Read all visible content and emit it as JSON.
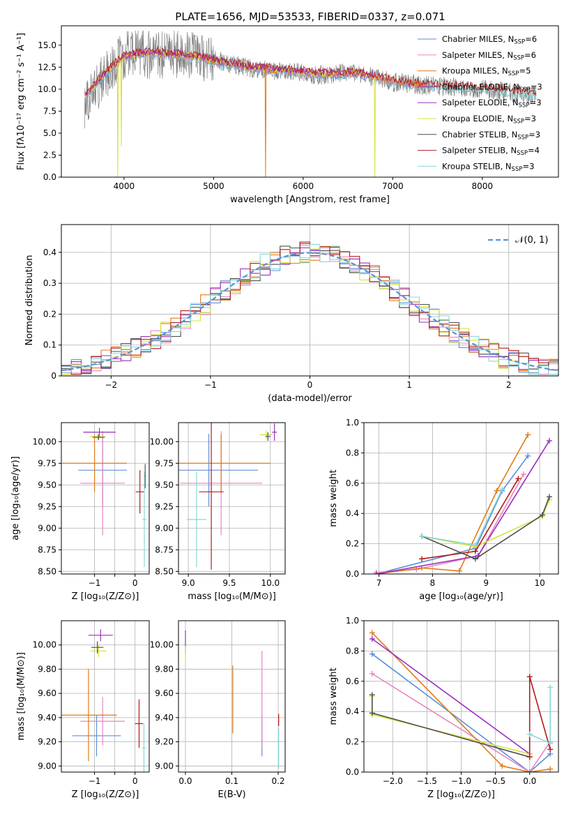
{
  "figure_title": "PLATE=1656, MJD=53533, FIBERID=0337, z=0.071",
  "colors": {
    "Chabrier MILES": "#5b8fd9",
    "Salpeter MILES": "#e885c1",
    "Kroupa MILES": "#e07b1a",
    "Chabrier ELODIE": "#9b2fbd",
    "Salpeter ELODIE": "#9b2fbd",
    "Kroupa ELODIE": "#d4e23a",
    "Chabrier STELIB": "#4f4f4f",
    "Salpeter STELIB": "#b31b1b",
    "Kroupa STELIB": "#86d8d8",
    "normal": "#5b8fd9",
    "spectrum_data": "#808080"
  },
  "chart_data": [
    {
      "id": "spectrum",
      "type": "line",
      "title": "PLATE=1656, MJD=53533, FIBERID=0337, z=0.071",
      "xlabel": "wavelength [Angstrom, rest frame]",
      "ylabel": "Flux [fλ10⁻¹⁷ erg cm⁻² s⁻¹ A⁻¹]",
      "xlim": [
        3300,
        8850
      ],
      "ylim": [
        0,
        17.2
      ],
      "xticks": [
        4000,
        5000,
        6000,
        7000,
        8000
      ],
      "yticks": [
        0.0,
        2.5,
        5.0,
        7.5,
        10.0,
        12.5,
        15.0
      ],
      "legend_position": "top-right",
      "legend": [
        {
          "label": "Chabrier MILES, N",
          "sub": "SSP",
          "suffix": "=6",
          "key": "Chabrier MILES"
        },
        {
          "label": "Salpeter MILES, N",
          "sub": "SSP",
          "suffix": "=6",
          "key": "Salpeter MILES"
        },
        {
          "label": "Kroupa MILES, N",
          "sub": "SSP",
          "suffix": "=5",
          "key": "Kroupa MILES"
        },
        {
          "label": "Chabrier ELODIE, N",
          "sub": "SSP",
          "suffix": "=3",
          "key": "Chabrier ELODIE"
        },
        {
          "label": "Salpeter ELODIE, N",
          "sub": "SSP",
          "suffix": "=3",
          "key": "Salpeter ELODIE"
        },
        {
          "label": "Kroupa ELODIE, N",
          "sub": "SSP",
          "suffix": "=3",
          "key": "Kroupa ELODIE"
        },
        {
          "label": "Chabrier STELIB, N",
          "sub": "SSP",
          "suffix": "=3",
          "key": "Chabrier STELIB"
        },
        {
          "label": "Salpeter STELIB, N",
          "sub": "SSP",
          "suffix": "=4",
          "key": "Salpeter STELIB"
        },
        {
          "label": "Kroupa STELIB, N",
          "sub": "SSP",
          "suffix": "=3",
          "key": "Kroupa STELIB"
        }
      ],
      "observed_continuum": [
        [
          3560,
          8.2
        ],
        [
          3650,
          9.6
        ],
        [
          3750,
          11.0
        ],
        [
          3850,
          12.2
        ],
        [
          3950,
          13.3
        ],
        [
          4050,
          14.0
        ],
        [
          4200,
          14.0
        ],
        [
          4400,
          13.8
        ],
        [
          4600,
          14.0
        ],
        [
          4800,
          13.8
        ],
        [
          5000,
          13.4
        ],
        [
          5200,
          12.8
        ],
        [
          5400,
          12.4
        ],
        [
          5600,
          12.1
        ],
        [
          5800,
          12.0
        ],
        [
          6000,
          11.8
        ],
        [
          6200,
          11.6
        ],
        [
          6400,
          11.8
        ],
        [
          6600,
          11.7
        ],
        [
          6800,
          11.4
        ],
        [
          7000,
          10.8
        ],
        [
          7200,
          10.6
        ],
        [
          7400,
          10.4
        ],
        [
          7600,
          10.3
        ],
        [
          7800,
          10.2
        ],
        [
          8000,
          10.0
        ],
        [
          8200,
          9.8
        ],
        [
          8400,
          9.5
        ],
        [
          8600,
          9.3
        ]
      ],
      "model_continuum": [
        [
          3560,
          9.0
        ],
        [
          3700,
          10.8
        ],
        [
          3850,
          12.4
        ],
        [
          4000,
          13.6
        ],
        [
          4200,
          14.1
        ],
        [
          4500,
          14.0
        ],
        [
          4800,
          13.7
        ],
        [
          5100,
          13.0
        ],
        [
          5400,
          12.5
        ],
        [
          5700,
          12.2
        ],
        [
          6000,
          11.9
        ],
        [
          6300,
          11.7
        ],
        [
          6600,
          11.8
        ],
        [
          6900,
          11.1
        ],
        [
          7200,
          10.6
        ],
        [
          7500,
          10.4
        ],
        [
          7800,
          10.2
        ],
        [
          8100,
          10.0
        ],
        [
          8400,
          9.6
        ],
        [
          8600,
          9.4
        ]
      ],
      "model_end_wavelengths": {
        "MILES": 7400,
        "ELODIE": 6800,
        "STELIB": 8600
      },
      "dips": [
        {
          "series": "Kroupa ELODIE",
          "x": 3930,
          "y": 0.0
        },
        {
          "series": "Kroupa ELODIE",
          "x": 3970,
          "y": 3.5
        },
        {
          "series": "Kroupa MILES",
          "x": 5580,
          "y": 0.0
        },
        {
          "series": "Kroupa ELODIE",
          "x": 6800,
          "y": 0.0
        }
      ]
    },
    {
      "id": "residuals",
      "type": "line",
      "xlabel": "(data-model)/error",
      "ylabel": "Normed distribution",
      "xlim": [
        -2.5,
        2.5
      ],
      "ylim": [
        0,
        0.49
      ],
      "xticks": [
        -2,
        -1,
        0,
        1,
        2
      ],
      "yticks": [
        0.0,
        0.1,
        0.2,
        0.3,
        0.4
      ],
      "grid": true,
      "legend_position": "top-right",
      "normal_label": "𝒩(0, 1)",
      "bin_width": 0.1
    },
    {
      "id": "age-vs-Z",
      "type": "scatter",
      "xlabel": "Z [log₁₀(Z/Z⊙)]",
      "ylabel": "age  [log₁₀(age/yr)]",
      "xlim": [
        -1.82,
        0.35
      ],
      "ylim": [
        8.47,
        10.22
      ],
      "xticks": [
        -1,
        -0.5,
        0
      ],
      "xticklabels": [
        "−1",
        "",
        "0"
      ],
      "yticks": [
        8.5,
        8.75,
        9.0,
        9.25,
        9.5,
        9.75,
        10.0
      ],
      "grid": true,
      "points": [
        {
          "series": "Chabrier MILES",
          "x": -0.8,
          "xerr": 0.6,
          "y": 9.67,
          "yerr": 0.42
        },
        {
          "series": "Salpeter MILES",
          "x": -0.8,
          "xerr": 0.55,
          "y": 9.52,
          "yerr": 0.6
        },
        {
          "series": "Kroupa MILES",
          "x": -1.0,
          "xerr": 0.8,
          "y": 9.75,
          "yerr": 0.33
        },
        {
          "series": "Chabrier ELODIE",
          "x": -0.88,
          "xerr": 0.4,
          "y": 10.11,
          "yerr": 0.05
        },
        {
          "series": "Kroupa ELODIE",
          "x": -0.92,
          "xerr": 0.2,
          "y": 10.06,
          "yerr": 0.05
        },
        {
          "series": "Chabrier STELIB",
          "x": -0.9,
          "xerr": 0.15,
          "y": 10.05,
          "yerr": 0.03
        },
        {
          "series": "Salpeter STELIB",
          "x": 0.12,
          "xerr": 0.1,
          "y": 9.42,
          "yerr": 0.25
        },
        {
          "series": "Chabrier STELIB",
          "x": 0.25,
          "xerr": 0.02,
          "y": 9.6,
          "yerr": 0.14
        },
        {
          "series": "Kroupa STELIB",
          "x": 0.23,
          "xerr": 0.05,
          "y": 9.1,
          "yerr": 0.55
        }
      ]
    },
    {
      "id": "age-vs-mass",
      "type": "scatter",
      "xlabel": "mass [log₁₀(M/M⊙)]",
      "xlim": [
        8.88,
        10.18
      ],
      "ylim": [
        8.47,
        10.22
      ],
      "xticks": [
        9.0,
        9.5,
        10.0
      ],
      "yticks": [
        8.5,
        8.75,
        9.0,
        9.25,
        9.5,
        9.75,
        10.0
      ],
      "grid": true,
      "points": [
        {
          "series": "Chabrier MILES",
          "x": 9.25,
          "xerr": 0.6,
          "y": 9.67,
          "yerr": 0.42
        },
        {
          "series": "Salpeter MILES",
          "x": 9.4,
          "xerr": 0.5,
          "y": 9.52,
          "yerr": 0.6
        },
        {
          "series": "Kroupa MILES",
          "x": 9.4,
          "xerr": 0.6,
          "y": 9.75,
          "yerr": 0.33
        },
        {
          "series": "Salpeter ELODIE",
          "x": 10.05,
          "xerr": 0.03,
          "y": 10.11,
          "yerr": 0.1
        },
        {
          "series": "Kroupa ELODIE",
          "x": 9.95,
          "xerr": 0.08,
          "y": 10.08,
          "yerr": 0.05
        },
        {
          "series": "Chabrier STELIB",
          "x": 9.97,
          "xerr": 0.03,
          "y": 10.06,
          "yerr": 0.05
        },
        {
          "series": "Salpeter STELIB",
          "x": 9.28,
          "xerr": 0.15,
          "y": 9.42,
          "yerr": 0.9
        },
        {
          "series": "Kroupa STELIB",
          "x": 9.1,
          "xerr": 0.12,
          "y": 9.1,
          "yerr": 0.55
        }
      ]
    },
    {
      "id": "massweight-vs-age",
      "type": "line",
      "xlabel": "age  [log₁₀(age/yr)]",
      "ylabel": "mass weight",
      "xlim": [
        6.72,
        10.35
      ],
      "ylim": [
        0,
        1.0
      ],
      "xticks": [
        7,
        8,
        9,
        10
      ],
      "yticks": [
        0.0,
        0.2,
        0.4,
        0.6,
        0.8,
        1.0
      ],
      "grid": true,
      "series": [
        {
          "name": "Chabrier MILES",
          "points": [
            [
              6.95,
              0.0
            ],
            [
              8.8,
              0.17
            ],
            [
              9.3,
              0.55
            ],
            [
              9.78,
              0.78
            ]
          ]
        },
        {
          "name": "Salpeter MILES",
          "points": [
            [
              6.95,
              0.01
            ],
            [
              7.7,
              0.03
            ],
            [
              8.85,
              0.12
            ],
            [
              9.7,
              0.66
            ]
          ]
        },
        {
          "name": "Kroupa MILES",
          "points": [
            [
              6.95,
              0.0
            ],
            [
              7.8,
              0.04
            ],
            [
              8.5,
              0.02
            ],
            [
              9.2,
              0.55
            ],
            [
              9.78,
              0.92
            ]
          ]
        },
        {
          "name": "Salpeter ELODIE",
          "points": [
            [
              6.95,
              0.0
            ],
            [
              8.85,
              0.12
            ],
            [
              10.18,
              0.88
            ]
          ]
        },
        {
          "name": "Kroupa ELODIE",
          "points": [
            [
              7.8,
              0.25
            ],
            [
              8.8,
              0.18
            ],
            [
              10.05,
              0.38
            ],
            [
              10.18,
              0.49
            ]
          ]
        },
        {
          "name": "Chabrier STELIB",
          "points": [
            [
              7.8,
              0.25
            ],
            [
              8.8,
              0.1
            ],
            [
              10.05,
              0.39
            ],
            [
              10.18,
              0.51
            ]
          ]
        },
        {
          "name": "Salpeter STELIB",
          "points": [
            [
              7.8,
              0.1
            ],
            [
              8.8,
              0.15
            ],
            [
              9.6,
              0.63
            ]
          ]
        },
        {
          "name": "Kroupa STELIB",
          "points": [
            [
              7.8,
              0.25
            ],
            [
              8.8,
              0.19
            ],
            [
              9.3,
              0.56
            ]
          ]
        }
      ]
    },
    {
      "id": "mass-vs-Z",
      "type": "scatter",
      "xlabel": "Z [log₁₀(Z/Z⊙)]",
      "ylabel": "mass [log₁₀(M/M⊙)]",
      "xlim": [
        -1.82,
        0.35
      ],
      "ylim": [
        8.95,
        10.2
      ],
      "xticks": [
        -1,
        -0.5,
        0
      ],
      "xticklabels": [
        "−1",
        "",
        "0"
      ],
      "yticks": [
        9.0,
        9.2,
        9.4,
        9.6,
        9.8,
        10.0
      ],
      "grid": true,
      "points": [
        {
          "series": "Chabrier MILES",
          "x": -0.95,
          "xerr": 0.6,
          "y": 9.25,
          "yerr": 0.17
        },
        {
          "series": "Salpeter MILES",
          "x": -0.8,
          "xerr": 0.55,
          "y": 9.37,
          "yerr": 0.2
        },
        {
          "series": "Kroupa MILES",
          "x": -1.15,
          "xerr": 0.7,
          "y": 9.42,
          "yerr": 0.38
        },
        {
          "series": "Salpeter ELODIE",
          "x": -0.85,
          "xerr": 0.3,
          "y": 10.08,
          "yerr": 0.05
        },
        {
          "series": "Kroupa ELODIE",
          "x": -0.9,
          "xerr": 0.2,
          "y": 9.95,
          "yerr": 0.05
        },
        {
          "series": "Chabrier STELIB",
          "x": -0.93,
          "xerr": 0.15,
          "y": 9.98,
          "yerr": 0.05
        },
        {
          "series": "Salpeter STELIB",
          "x": 0.1,
          "xerr": 0.1,
          "y": 9.35,
          "yerr": 0.2
        },
        {
          "series": "Kroupa STELIB",
          "x": 0.22,
          "xerr": 0.05,
          "y": 9.15,
          "yerr": 0.2
        }
      ]
    },
    {
      "id": "mass-vs-EBV",
      "type": "scatter",
      "xlabel": "E(B-V)",
      "xlim": [
        -0.015,
        0.215
      ],
      "ylim": [
        8.95,
        10.2
      ],
      "xticks": [
        0.0,
        0.1,
        0.2
      ],
      "yticks": [
        9.0,
        9.2,
        9.4,
        9.6,
        9.8,
        10.0
      ],
      "grid": true,
      "points": [
        {
          "series": "Chabrier MILES",
          "x": 0.165,
          "y": 9.25,
          "yerr": 0.17
        },
        {
          "series": "Salpeter MILES",
          "x": 0.165,
          "y": 9.55,
          "yerr": 0.4
        },
        {
          "series": "Kroupa MILES",
          "x": 0.102,
          "y": 9.55,
          "yerr": 0.28
        },
        {
          "series": "Salpeter ELODIE",
          "x": 0.0,
          "y": 10.02,
          "yerr": 0.1
        },
        {
          "series": "Kroupa ELODIE",
          "x": 0.0,
          "y": 9.92,
          "yerr": 0.07
        },
        {
          "series": "Salpeter STELIB",
          "x": 0.201,
          "y": 9.38,
          "yerr": 0.05
        },
        {
          "series": "Kroupa STELIB",
          "x": 0.201,
          "y": 9.15,
          "yerr": 0.17
        }
      ]
    },
    {
      "id": "massweight-vs-Z",
      "type": "line",
      "xlabel": "Z [log₁₀(Z/Z⊙)]",
      "ylabel": "mass weight",
      "xlim": [
        -2.42,
        0.42
      ],
      "ylim": [
        0,
        1.0
      ],
      "xticks": [
        -2.0,
        -1.5,
        -1.0,
        -0.5,
        0.0
      ],
      "yticks": [
        0.0,
        0.2,
        0.4,
        0.6,
        0.8,
        1.0
      ],
      "grid": true,
      "series": [
        {
          "name": "Chabrier MILES",
          "points": [
            [
              -2.3,
              0.78
            ],
            [
              0.0,
              0.0
            ],
            [
              0.3,
              0.12
            ]
          ]
        },
        {
          "name": "Salpeter MILES",
          "points": [
            [
              -2.3,
              0.65
            ],
            [
              0.0,
              0.0
            ],
            [
              0.3,
              0.2
            ]
          ]
        },
        {
          "name": "Kroupa MILES",
          "points": [
            [
              -2.3,
              0.92
            ],
            [
              -0.4,
              0.04
            ],
            [
              0.0,
              0.0
            ],
            [
              0.3,
              0.02
            ]
          ]
        },
        {
          "name": "Salpeter ELODIE",
          "points": [
            [
              -2.3,
              0.88
            ],
            [
              0.0,
              0.12
            ]
          ]
        },
        {
          "name": "Kroupa ELODIE",
          "points": [
            [
              -2.3,
              0.5
            ],
            [
              -2.3,
              0.38
            ],
            [
              0.0,
              0.12
            ]
          ]
        },
        {
          "name": "Chabrier STELIB",
          "points": [
            [
              -2.3,
              0.51
            ],
            [
              -2.3,
              0.39
            ],
            [
              0.0,
              0.1
            ]
          ]
        },
        {
          "name": "Salpeter STELIB",
          "points": [
            [
              0.0,
              0.1
            ],
            [
              0.0,
              0.63
            ],
            [
              0.3,
              0.15
            ]
          ]
        },
        {
          "name": "Kroupa STELIB",
          "points": [
            [
              0.0,
              0.25
            ],
            [
              0.3,
              0.19
            ],
            [
              0.3,
              0.56
            ]
          ]
        }
      ]
    }
  ]
}
